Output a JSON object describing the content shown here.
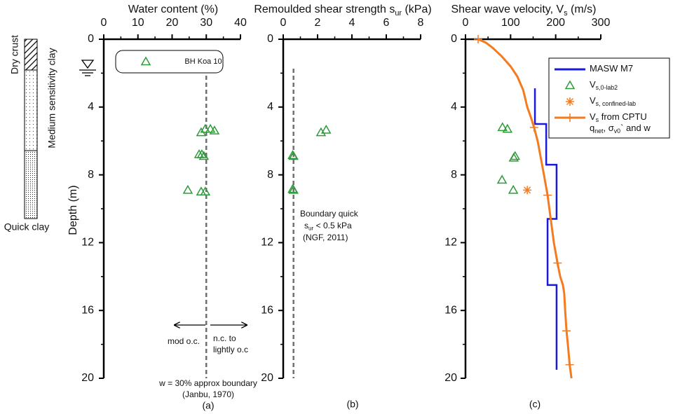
{
  "soil_column": {
    "layers": [
      "Dry crust",
      "Medium sensitivity clay",
      "Quick clay"
    ]
  },
  "chart_data": [
    {
      "type": "scatter",
      "title_parts": [
        "Water content (%)"
      ],
      "ylabel": "Depth (m)",
      "xlim": [
        0,
        40
      ],
      "xticks": [
        0,
        10,
        20,
        30,
        40
      ],
      "xminorticks": [
        5,
        15,
        25,
        35
      ],
      "ylim": [
        0,
        20
      ],
      "yticks": [
        0,
        4,
        8,
        12,
        16,
        20
      ],
      "yminorticks": [
        2,
        6,
        10,
        14,
        18
      ],
      "legend": "top",
      "series": [
        {
          "name_lines": [
            [
              "BH Koa 10"
            ]
          ],
          "color": "#2e9b3a",
          "marker": "triangle",
          "x": [
            28.5,
            29.7,
            31.2,
            32.4,
            27.9,
            28.7,
            29.3,
            24.6,
            28.5,
            29.7
          ],
          "y": [
            5.5,
            5.3,
            5.3,
            5.4,
            6.8,
            6.8,
            6.9,
            8.9,
            9.0,
            9.0
          ]
        }
      ],
      "vlines": [
        {
          "x": 30,
          "color": "#707070"
        }
      ],
      "annotations": [
        [
          "mod o.c."
        ],
        [
          "n.c. to"
        ],
        [
          "lightly o.c"
        ],
        [
          "w = 30% approx boundary"
        ],
        [
          "(Janbu, 1970)"
        ]
      ],
      "panel_label": "(a)"
    },
    {
      "type": "scatter",
      "title_parts": [
        "Remoulded shear strength s",
        "ur",
        " (kPa)"
      ],
      "xlim": [
        0,
        8
      ],
      "xticks": [
        0,
        2,
        4,
        6,
        8
      ],
      "xminorticks": [
        1,
        3,
        5,
        7
      ],
      "ylim": [
        0,
        20
      ],
      "yticks": [
        0,
        4,
        8,
        12,
        16,
        20
      ],
      "yminorticks": [
        2,
        6,
        10,
        14,
        18
      ],
      "series": [
        {
          "color": "#2e9b3a",
          "marker": "triangle",
          "x": [
            2.2,
            2.5,
            0.55,
            0.6,
            0.55,
            0.6
          ],
          "y": [
            5.5,
            5.35,
            6.85,
            6.9,
            8.85,
            8.9
          ]
        }
      ],
      "vlines": [
        {
          "x": 0.6,
          "color": "#707070"
        }
      ],
      "annotations": [
        [
          "Boundary quick"
        ],
        [
          "s",
          "ur",
          " < 0.5 kPa"
        ],
        [
          "(NGF, 2011)"
        ]
      ],
      "panel_label": "(b)"
    },
    {
      "type": "line",
      "title_parts": [
        "Shear wave velocity, V",
        "s",
        " (m/s)"
      ],
      "xlim": [
        0,
        300
      ],
      "xticks": [
        0,
        100,
        200,
        300
      ],
      "xminorticks": [
        50,
        150,
        250
      ],
      "ylim": [
        0,
        20
      ],
      "yticks": [
        0,
        4,
        8,
        12,
        16,
        20
      ],
      "yminorticks": [
        2,
        6,
        10,
        14,
        18
      ],
      "legend": "upper right",
      "series": [
        {
          "name_lines": [
            [
              "MASW M7"
            ]
          ],
          "color": "#1a1adb",
          "line": true,
          "x": [
            154,
            154,
            179,
            179,
            202,
            202,
            182,
            182,
            202,
            202
          ],
          "y": [
            2.9,
            5.0,
            5.0,
            7.4,
            7.4,
            10.6,
            10.6,
            14.5,
            14.5,
            19.5
          ]
        },
        {
          "name_lines": [
            [
              "V",
              "s,0-lab2"
            ]
          ],
          "color": "#2e9b3a",
          "marker": "triangle",
          "x": [
            82,
            93,
            110,
            107,
            81,
            106
          ],
          "y": [
            5.2,
            5.3,
            6.9,
            7.0,
            8.3,
            8.9
          ]
        },
        {
          "name_lines": [
            [
              "V",
              "s, confined-lab"
            ]
          ],
          "color": "#f47b20",
          "marker": "star",
          "x": [
            137
          ],
          "y": [
            8.9
          ]
        },
        {
          "name_lines": [
            [
              "V",
              "s",
              " from CPTU"
            ],
            [
              "q",
              "net",
              ", σ",
              "v0",
              "` and w"
            ]
          ],
          "color": "#f47b20",
          "line": true,
          "marker": "plus",
          "x": [
            28,
            45,
            60,
            80,
            100,
            115,
            128,
            137,
            145,
            152,
            160,
            167,
            174,
            182,
            189,
            196,
            204,
            210,
            216,
            219,
            221,
            224,
            227,
            231,
            235
          ],
          "y": [
            0,
            0.2,
            0.5,
            1,
            1.6,
            2.2,
            3,
            4,
            4.6,
            5.2,
            6,
            7,
            8,
            9.2,
            10.6,
            12,
            13.2,
            14,
            14.5,
            15,
            16,
            17.2,
            18,
            19.2,
            20
          ],
          "markers": {
            "x": [
              28,
              152,
              182,
              204,
              224,
              231
            ],
            "y": [
              0,
              5.2,
              9.2,
              13.2,
              17.2,
              19.2
            ]
          }
        }
      ],
      "panel_label": "(c)"
    }
  ]
}
